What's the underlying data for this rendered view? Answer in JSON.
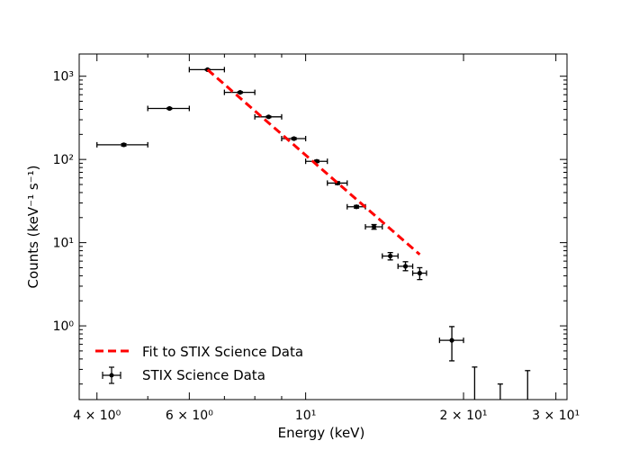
{
  "chart_data": {
    "type": "scatter",
    "xscale": "log",
    "yscale": "log",
    "xlim": [
      3.7,
      31.5
    ],
    "ylim": [
      0.13,
      1850
    ],
    "xlabel": "Energy (keV)",
    "ylabel": "Counts (keV⁻¹ s⁻¹)",
    "grid": false,
    "legend_position": "lower-left",
    "x_ticks": [
      {
        "value": 4,
        "label": "4 × 10⁰"
      },
      {
        "value": 6,
        "label": "6 × 10⁰"
      },
      {
        "value": 10,
        "label": "10¹"
      },
      {
        "value": 20,
        "label": "2 × 10¹"
      },
      {
        "value": 30,
        "label": "3 × 10¹"
      }
    ],
    "y_ticks": [
      {
        "value": 1,
        "label": "10⁰"
      },
      {
        "value": 10,
        "label": "10¹"
      },
      {
        "value": 100,
        "label": "10²"
      },
      {
        "value": 1000,
        "label": "10³"
      }
    ],
    "series": [
      {
        "name": "STIX Science Data",
        "kind": "errorbar",
        "color": "#000000",
        "points": [
          {
            "x": 4.5,
            "y": 150,
            "xerr": [
              4.0,
              5.0
            ],
            "yerr": [
              145,
              155
            ]
          },
          {
            "x": 5.5,
            "y": 410,
            "xerr": [
              5.0,
              6.0
            ],
            "yerr": [
              400,
              420
            ]
          },
          {
            "x": 6.5,
            "y": 1200,
            "xerr": [
              6.0,
              7.0
            ],
            "yerr": [
              1180,
              1220
            ]
          },
          {
            "x": 7.5,
            "y": 640,
            "xerr": [
              7.0,
              8.0
            ],
            "yerr": [
              625,
              655
            ]
          },
          {
            "x": 8.5,
            "y": 325,
            "xerr": [
              8.0,
              9.0
            ],
            "yerr": [
              318,
              332
            ]
          },
          {
            "x": 9.5,
            "y": 178,
            "xerr": [
              9.0,
              10.0
            ],
            "yerr": [
              173,
              183
            ]
          },
          {
            "x": 10.5,
            "y": 95,
            "xerr": [
              10.0,
              11.0
            ],
            "yerr": [
              92,
              98
            ]
          },
          {
            "x": 11.5,
            "y": 52,
            "xerr": [
              11.0,
              12.0
            ],
            "yerr": [
              50,
              54
            ]
          },
          {
            "x": 12.5,
            "y": 27,
            "xerr": [
              12.0,
              13.0
            ],
            "yerr": [
              26,
              28
            ]
          },
          {
            "x": 13.5,
            "y": 15.5,
            "xerr": [
              13.0,
              14.0
            ],
            "yerr": [
              14.5,
              16.5
            ]
          },
          {
            "x": 14.5,
            "y": 6.9,
            "xerr": [
              14.0,
              15.0
            ],
            "yerr": [
              6.2,
              7.6
            ]
          },
          {
            "x": 15.5,
            "y": 5.2,
            "xerr": [
              15.0,
              16.0
            ],
            "yerr": [
              4.6,
              5.9
            ]
          },
          {
            "x": 16.5,
            "y": 4.3,
            "xerr": [
              16.0,
              17.0
            ],
            "yerr": [
              3.6,
              5.0
            ]
          },
          {
            "x": 19.0,
            "y": 0.67,
            "xerr": [
              18.0,
              20.0
            ],
            "yerr": [
              0.38,
              0.98
            ]
          },
          {
            "x": 21.0,
            "y": null,
            "xerr": null,
            "yerr": [
              0.13,
              0.32
            ]
          },
          {
            "x": 23.5,
            "y": null,
            "xerr": null,
            "yerr": [
              0.13,
              0.2
            ]
          },
          {
            "x": 26.5,
            "y": null,
            "xerr": null,
            "yerr": [
              0.13,
              0.29
            ]
          }
        ]
      },
      {
        "name": "Fit to STIX Science Data",
        "kind": "line",
        "color": "#ff0000",
        "style": "dashed",
        "x": [
          6.5,
          16.5
        ],
        "y": [
          1200,
          7.2
        ]
      }
    ]
  }
}
